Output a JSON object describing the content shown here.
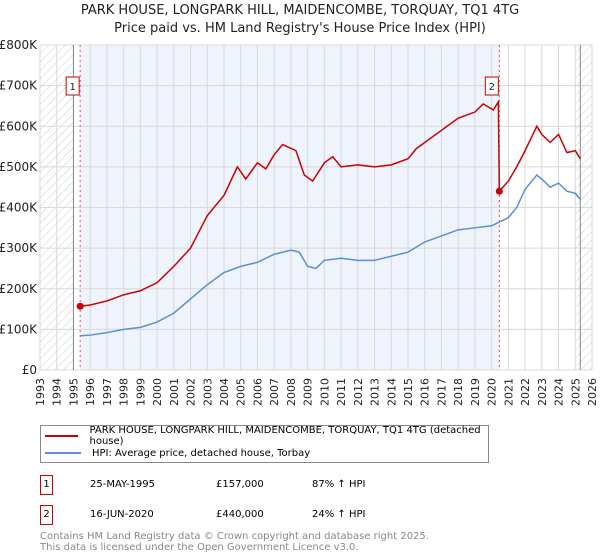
{
  "chart_data": {
    "type": "line",
    "title": "PARK HOUSE, LONGPARK HILL, MAIDENCOMBE, TORQUAY, TQ1 4TG",
    "subtitle": "Price paid vs. HM Land Registry's House Price Index (HPI)",
    "xlim": [
      1993,
      2026
    ],
    "ylim": [
      0,
      800000
    ],
    "x_ticks": [
      "1993",
      "1994",
      "1995",
      "1996",
      "1997",
      "1998",
      "1999",
      "2000",
      "2001",
      "2002",
      "2003",
      "2004",
      "2005",
      "2006",
      "2007",
      "2008",
      "2009",
      "2010",
      "2011",
      "2012",
      "2013",
      "2014",
      "2015",
      "2016",
      "2017",
      "2018",
      "2019",
      "2020",
      "2021",
      "2022",
      "2023",
      "2024",
      "2025",
      "2026"
    ],
    "y_ticks": [
      {
        "v": 0,
        "label": "£0"
      },
      {
        "v": 100000,
        "label": "£100K"
      },
      {
        "v": 200000,
        "label": "£200K"
      },
      {
        "v": 300000,
        "label": "£300K"
      },
      {
        "v": 400000,
        "label": "£400K"
      },
      {
        "v": 500000,
        "label": "£500K"
      },
      {
        "v": 600000,
        "label": "£600K"
      },
      {
        "v": 700000,
        "label": "£700K"
      },
      {
        "v": 800000,
        "label": "£800K"
      }
    ],
    "grid": true,
    "series": [
      {
        "name": "PARK HOUSE, LONGPARK HILL, MAIDENCOMBE, TORQUAY, TQ1 4TG (detached house)",
        "color": "#cc0000",
        "x": [
          1995.4,
          1996,
          1997,
          1998,
          1999,
          2000,
          2001,
          2002,
          2003,
          2004,
          2004.8,
          2005.3,
          2006,
          2006.5,
          2007,
          2007.5,
          2008.3,
          2008.8,
          2009.3,
          2010,
          2010.5,
          2011,
          2012,
          2013,
          2014,
          2015,
          2015.5,
          2016,
          2017,
          2018,
          2019,
          2019.5,
          2020.1,
          2020.4,
          2020.46,
          2021,
          2021.5,
          2022,
          2022.7,
          2023,
          2023.5,
          2024,
          2024.5,
          2025,
          2025.3
        ],
        "y": [
          157000,
          160000,
          170000,
          185000,
          195000,
          215000,
          255000,
          300000,
          380000,
          430000,
          500000,
          470000,
          510000,
          495000,
          530000,
          555000,
          540000,
          480000,
          465000,
          510000,
          525000,
          500000,
          505000,
          500000,
          505000,
          520000,
          545000,
          560000,
          590000,
          620000,
          635000,
          655000,
          640000,
          660000,
          440000,
          465000,
          500000,
          540000,
          600000,
          580000,
          560000,
          580000,
          535000,
          540000,
          520000
        ]
      },
      {
        "name": "HPI: Average price, detached house, Torbay",
        "color": "#5b8ed6",
        "x": [
          1995.4,
          1996,
          1997,
          1998,
          1999,
          2000,
          2001,
          2002,
          2003,
          2004,
          2005,
          2006,
          2007,
          2008,
          2008.5,
          2009,
          2009.5,
          2010,
          2011,
          2012,
          2013,
          2014,
          2015,
          2016,
          2017,
          2018,
          2019,
          2020,
          2021,
          2021.5,
          2022,
          2022.7,
          2023,
          2023.5,
          2024,
          2024.5,
          2025,
          2025.3
        ],
        "y": [
          84000,
          86000,
          92000,
          100000,
          105000,
          118000,
          140000,
          175000,
          210000,
          240000,
          255000,
          265000,
          285000,
          295000,
          290000,
          255000,
          250000,
          270000,
          275000,
          270000,
          270000,
          280000,
          290000,
          315000,
          330000,
          345000,
          350000,
          355000,
          375000,
          400000,
          445000,
          480000,
          470000,
          450000,
          460000,
          440000,
          435000,
          420000
        ]
      }
    ],
    "annotations": [
      {
        "label": "1",
        "x": 1995.4,
        "y": 157000
      },
      {
        "label": "2",
        "x": 2020.46,
        "y": 440000
      }
    ],
    "shaded_range": [
      1995.4,
      2020.46
    ],
    "hatched_ranges": [
      [
        1993,
        1995
      ],
      [
        2025,
        2026
      ]
    ]
  },
  "legend": [
    "PARK HOUSE, LONGPARK HILL, MAIDENCOMBE, TORQUAY, TQ1 4TG (detached house)",
    "HPI: Average price, detached house, Torbay"
  ],
  "transactions": [
    {
      "num": "1",
      "date": "25-MAY-1995",
      "price": "£157,000",
      "hpi": "87% ↑ HPI"
    },
    {
      "num": "2",
      "date": "16-JUN-2020",
      "price": "£440,000",
      "hpi": "24% ↑ HPI"
    }
  ],
  "footer": [
    "Contains HM Land Registry data © Crown copyright and database right 2025.",
    "This data is licensed under the Open Government Licence v3.0."
  ]
}
